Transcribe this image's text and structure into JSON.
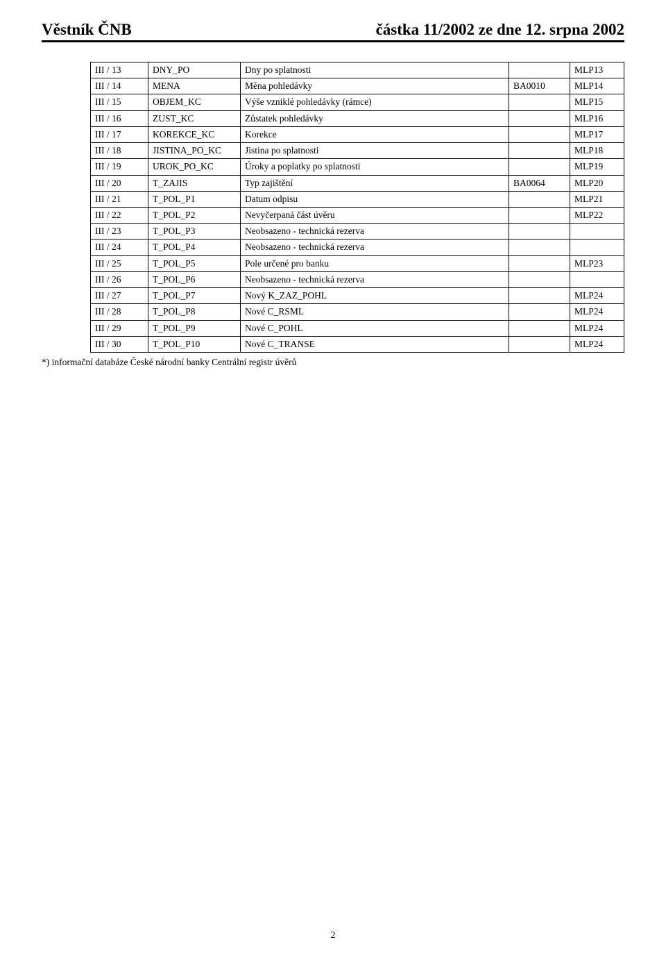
{
  "header": {
    "left": "Věstník ČNB",
    "right": "částka 11/2002 ze dne 12. srpna 2002"
  },
  "rows": [
    {
      "c1": "III / 13",
      "c2": "DNY_PO",
      "c3": "Dny po splatnosti",
      "c4": "",
      "c5": "MLP13"
    },
    {
      "c1": "III / 14",
      "c2": "MENA",
      "c3": "Měna pohledávky",
      "c4": "BA0010",
      "c5": "MLP14"
    },
    {
      "c1": "III / 15",
      "c2": "OBJEM_KC",
      "c3": "Výše vzniklé pohledávky (rámce)",
      "c4": "",
      "c5": "MLP15"
    },
    {
      "c1": "III / 16",
      "c2": "ZUST_KC",
      "c3": "Zůstatek pohledávky",
      "c4": "",
      "c5": "MLP16"
    },
    {
      "c1": "III / 17",
      "c2": "KOREKCE_KC",
      "c3": "Korekce",
      "c4": "",
      "c5": "MLP17"
    },
    {
      "c1": "III / 18",
      "c2": "JISTINA_PO_KC",
      "c3": "Jistina po splatnosti",
      "c4": "",
      "c5": "MLP18"
    },
    {
      "c1": "III / 19",
      "c2": "UROK_PO_KC",
      "c3": "Úroky a poplatky po splatnosti",
      "c4": "",
      "c5": "MLP19"
    },
    {
      "c1": "III / 20",
      "c2": "T_ZAJIS",
      "c3": "Typ zajištění",
      "c4": "BA0064",
      "c5": "MLP20"
    },
    {
      "c1": "III / 21",
      "c2": "T_POL_P1",
      "c3": "Datum odpisu",
      "c4": "",
      "c5": "MLP21"
    },
    {
      "c1": "III / 22",
      "c2": "T_POL_P2",
      "c3": "Nevyčerpaná část úvěru",
      "c4": "",
      "c5": "MLP22"
    },
    {
      "c1": "III / 23",
      "c2": "T_POL_P3",
      "c3": "Neobsazeno - technická rezerva",
      "c4": "",
      "c5": ""
    },
    {
      "c1": "III / 24",
      "c2": "T_POL_P4",
      "c3": "Neobsazeno - technická rezerva",
      "c4": "",
      "c5": ""
    },
    {
      "c1": "III / 25",
      "c2": "T_POL_P5",
      "c3": "Pole určené pro banku",
      "c4": "",
      "c5": "MLP23"
    },
    {
      "c1": "III / 26",
      "c2": "T_POL_P6",
      "c3": "Neobsazeno - technická rezerva",
      "c4": "",
      "c5": ""
    },
    {
      "c1": "III / 27",
      "c2": "T_POL_P7",
      "c3": "Nový K_ZAZ_POHL",
      "c4": "",
      "c5": "MLP24"
    },
    {
      "c1": "III / 28",
      "c2": "T_POL_P8",
      "c3": "Nové C_RSML",
      "c4": "",
      "c5": "MLP24"
    },
    {
      "c1": "III / 29",
      "c2": "T_POL_P9",
      "c3": "Nové C_POHL",
      "c4": "",
      "c5": "MLP24"
    },
    {
      "c1": "III / 30",
      "c2": "T_POL_P10",
      "c3": "Nové C_TRANSE",
      "c4": "",
      "c5": "MLP24"
    }
  ],
  "footnote": "*) informační databáze České národní banky Centrální registr úvěrů",
  "page_number": "2"
}
